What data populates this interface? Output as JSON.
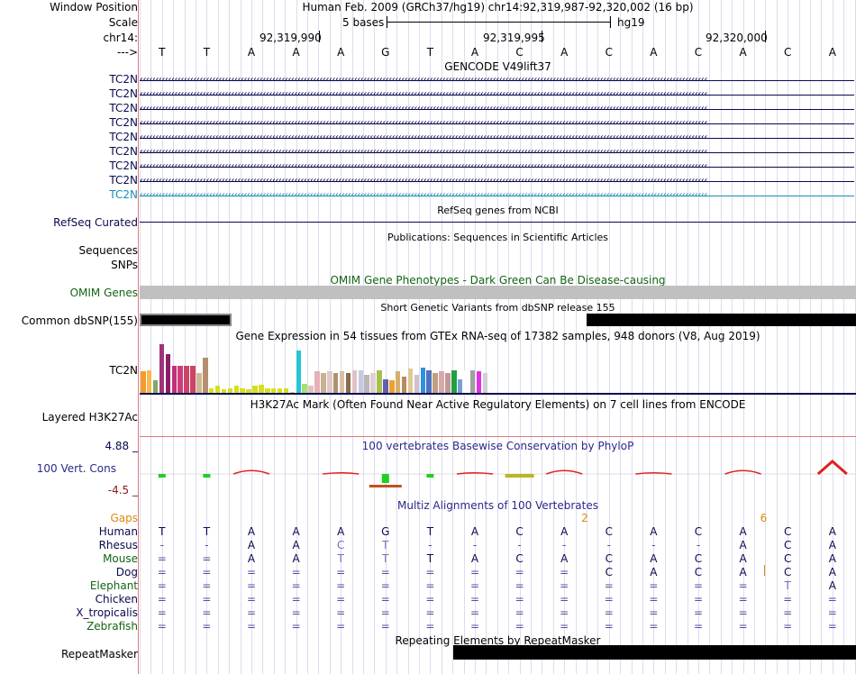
{
  "header": {
    "window_position_label": "Window Position",
    "window_position": "Human Feb. 2009 (GRCh37/hg19)   chr14:92,319,987-92,320,002 (16 bp)",
    "scale_label": "Scale",
    "scale_text": "5 bases",
    "assembly": "hg19",
    "chrom_label": "chr14:",
    "ticks": [
      "92,319,990",
      "92,319,995",
      "92,320,000"
    ],
    "strand_label": "--->"
  },
  "sequence": [
    "T",
    "T",
    "A",
    "A",
    "A",
    "G",
    "T",
    "A",
    "C",
    "A",
    "C",
    "A",
    "C",
    "A",
    "C",
    "A"
  ],
  "tracks": {
    "gencode": {
      "title": "GENCODE V49lift37",
      "rows": [
        "TC2N",
        "TC2N",
        "TC2N",
        "TC2N",
        "TC2N",
        "TC2N",
        "TC2N",
        "TC2N",
        "TC2N"
      ],
      "colors": [
        "#0a0a50",
        "#0a0a50",
        "#0a0a50",
        "#0a0a50",
        "#0a0a50",
        "#0a0a50",
        "#0a0a50",
        "#0a0a50",
        "#1a8fb0"
      ]
    },
    "refseq": {
      "title": "RefSeq genes from NCBI",
      "label": "RefSeq Curated"
    },
    "publications": {
      "title": "Publications: Sequences in Scientific Articles",
      "label": "Sequences"
    },
    "snps": {
      "label": "SNPs"
    },
    "omim": {
      "title": "OMIM Gene Phenotypes - Dark Green Can Be Disease-causing",
      "label": "OMIM Genes"
    },
    "dbsnp": {
      "title": "Short Genetic Variants from dbSNP release 155",
      "label": "Common dbSNP(155)"
    },
    "gtex": {
      "title": "Gene Expression in 54 tissues from GTEx RNA-seq of 17382 samples, 948 donors (V8, Aug 2019)",
      "label": "TC2N",
      "values": [
        38,
        40,
        22,
        86,
        68,
        48,
        48,
        48,
        48,
        34,
        62,
        8,
        12,
        6,
        8,
        12,
        8,
        6,
        12,
        14,
        8,
        8,
        8,
        8,
        2,
        74,
        16,
        12,
        38,
        34,
        38,
        34,
        38,
        34,
        40,
        40,
        32,
        34,
        40,
        24,
        22,
        38,
        28,
        42,
        32,
        44,
        40,
        34,
        38,
        34,
        40,
        24,
        40,
        40,
        38,
        34
      ],
      "colors": [
        "#f49a31",
        "#f9b94b",
        "#7da96a",
        "#a0337a",
        "#8c1e66",
        "#c2307a",
        "#cc3c7a",
        "#cc4466",
        "#cc4466",
        "#d0b890",
        "#b58e70",
        "#d4e020",
        "#d4e020",
        "#d4e020",
        "#d4e020",
        "#d4e020",
        "#d4e020",
        "#d4e020",
        "#d4e020",
        "#d4e020",
        "#d4e020",
        "#d4e020",
        "#d4e020",
        "#d4e020",
        "#d4e020",
        "#23c7d6",
        "#a8e070",
        "#e0c0c0",
        "#e8b0b8",
        "#c9b090",
        "#e0c8c8",
        "#b09070",
        "#d8c0a8",
        "#8c6a4a",
        "#e0c0c8",
        "#c8c8e0",
        "#b8b8b8",
        "#e0d0d0",
        "#a8c050",
        "#6060b0",
        "#f0a030",
        "#d4b070",
        "#b88c60",
        "#e0c890",
        "#d0c0c8",
        "#3090e0",
        "#5070c0",
        "#c0a080",
        "#d8a8a8",
        "#c09898",
        "#20a040",
        "#78a0d0",
        "#ffffff",
        "#a0a0a0",
        "#e030e0",
        "#d0d0d0"
      ]
    },
    "h3k27ac": {
      "title": "H3K27Ac Mark (Often Found Near Active Regulatory Elements) on 7 cell lines from ENCODE",
      "label": "Layered H3K27Ac"
    },
    "phylop": {
      "title": "100 vertebrates Basewise Conservation by PhyloP",
      "label": "100 Vert. Cons",
      "ymax": "4.88 _",
      "ymin": "-4.5 _"
    },
    "multiz": {
      "title": "Multiz Alignments of 100 Vertebrates",
      "gaps_label": "Gaps",
      "gap_counts": [
        {
          "index": 9,
          "value": "2"
        },
        {
          "index": 13,
          "value": "6"
        }
      ],
      "species": [
        {
          "name": "Human",
          "bases": [
            "T",
            "T",
            "A",
            "A",
            "A",
            "G",
            "T",
            "A",
            "C",
            "A",
            "C",
            "A",
            "C",
            "A",
            "C",
            "A"
          ]
        },
        {
          "name": "Rhesus",
          "bases": [
            "-",
            "-",
            "A",
            "A",
            "C",
            "T",
            "-",
            "-",
            "-",
            "-",
            "-",
            "-",
            "-",
            "A",
            "C",
            "A"
          ]
        },
        {
          "name": "Mouse",
          "bases": [
            "=",
            "=",
            "A",
            "A",
            "T",
            "T",
            "T",
            "A",
            "C",
            "A",
            "C",
            "A",
            "C",
            "A",
            "C",
            "A"
          ]
        },
        {
          "name": "Dog",
          "bases": [
            "=",
            "=",
            "=",
            "=",
            "=",
            "=",
            "=",
            "=",
            "=",
            "=",
            "C",
            "A",
            "C",
            "A",
            "C",
            "A"
          ]
        },
        {
          "name": "Elephant",
          "bases": [
            "=",
            "=",
            "=",
            "=",
            "=",
            "=",
            "=",
            "=",
            "=",
            "=",
            "=",
            "=",
            "=",
            "=",
            "T",
            "A"
          ]
        },
        {
          "name": "Chicken",
          "bases": [
            "=",
            "=",
            "=",
            "=",
            "=",
            "=",
            "=",
            "=",
            "=",
            "=",
            "=",
            "=",
            "=",
            "=",
            "=",
            "="
          ]
        },
        {
          "name": "X_tropicalis",
          "bases": [
            "=",
            "=",
            "=",
            "=",
            "=",
            "=",
            "=",
            "=",
            "=",
            "=",
            "=",
            "=",
            "=",
            "=",
            "=",
            "="
          ]
        },
        {
          "name": "Zebrafish",
          "bases": [
            "=",
            "=",
            "=",
            "=",
            "=",
            "=",
            "=",
            "=",
            "=",
            "=",
            "=",
            "=",
            "=",
            "=",
            "=",
            "="
          ]
        }
      ]
    },
    "repeatmasker": {
      "title": "Repeating Elements by RepeatMasker",
      "label": "RepeatMasker"
    }
  },
  "colors": {
    "navy": "#0a0a50",
    "green": "#146414",
    "gap_orange": "#d98a10",
    "phylop_red": "#e02020",
    "phylop_green": "#20d020"
  }
}
